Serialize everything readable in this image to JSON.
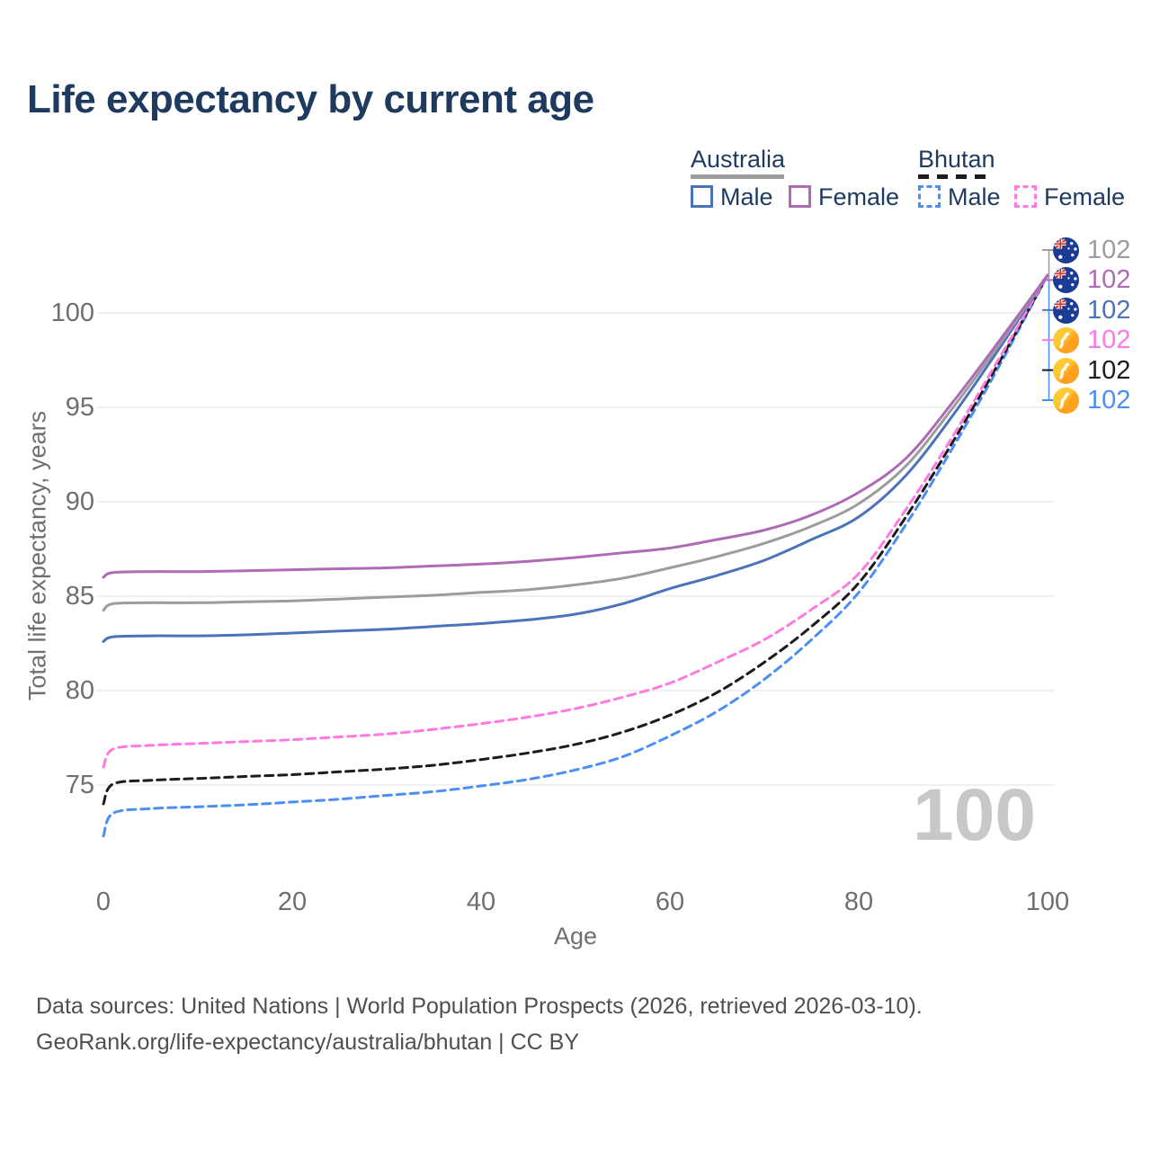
{
  "title": "Life expectancy by current age",
  "watermark_age": "100",
  "colors": {
    "title": "#1e3a5f",
    "axis": "#6f6f6f",
    "grid": "#ececec",
    "watermark": "#c8c8c8",
    "footer": "#4f4f4f",
    "legend_text": "#1e3a5f",
    "connector_top": "#999999",
    "connector_bottom": "#4b8ff5"
  },
  "legend": {
    "groups": [
      {
        "label": "Australia",
        "line_style": "solid",
        "underline_color": "#9c9c9c",
        "items": [
          {
            "label": "Male",
            "color": "#4a73ba",
            "dashed": false
          },
          {
            "label": "Female",
            "color": "#ae6bb5",
            "dashed": false
          }
        ]
      },
      {
        "label": "Bhutan",
        "line_style": "dashed",
        "underline_color": "#1c1c1c",
        "items": [
          {
            "label": "Male",
            "color": "#4b8ff5",
            "dashed": true
          },
          {
            "label": "Female",
            "color": "#ff79e1",
            "dashed": true
          }
        ]
      }
    ]
  },
  "chart_data": {
    "type": "line",
    "title": "Life expectancy by current age",
    "xlabel": "Age",
    "ylabel": "Total life expectancy, years",
    "xlim": [
      0,
      100
    ],
    "ylim": [
      72,
      103
    ],
    "xticks": [
      0,
      20,
      40,
      60,
      80,
      100
    ],
    "yticks": [
      75,
      80,
      85,
      90,
      95,
      100
    ],
    "grid": "horizontal",
    "legend_position": "top-right",
    "ages": [
      0,
      1,
      5,
      10,
      15,
      20,
      25,
      30,
      35,
      40,
      45,
      50,
      55,
      60,
      65,
      70,
      75,
      80,
      85,
      90,
      95,
      100
    ],
    "series": [
      {
        "name": "Australia",
        "country": "Australia",
        "sex": "both",
        "color": "#9c9c9c",
        "dashed": false,
        "flag": "au",
        "end_label": "102",
        "values": [
          84.25,
          84.6,
          84.65,
          84.65,
          84.7,
          84.75,
          84.85,
          84.95,
          85.05,
          85.2,
          85.35,
          85.6,
          85.95,
          86.5,
          87.1,
          87.8,
          88.7,
          89.9,
          91.9,
          95.0,
          98.4,
          102
        ]
      },
      {
        "name": "Australia Female",
        "country": "Australia",
        "sex": "female",
        "color": "#ae6bb5",
        "dashed": false,
        "flag": "au",
        "end_label": "102",
        "values": [
          86.0,
          86.25,
          86.3,
          86.3,
          86.35,
          86.4,
          86.45,
          86.5,
          86.6,
          86.7,
          86.85,
          87.05,
          87.3,
          87.55,
          88.0,
          88.5,
          89.3,
          90.5,
          92.3,
          95.3,
          98.6,
          102
        ]
      },
      {
        "name": "Australia Male",
        "country": "Australia",
        "sex": "male",
        "color": "#4a73ba",
        "dashed": false,
        "flag": "au",
        "end_label": "102",
        "values": [
          82.6,
          82.85,
          82.9,
          82.9,
          82.95,
          83.05,
          83.15,
          83.25,
          83.4,
          83.55,
          83.75,
          84.05,
          84.6,
          85.4,
          86.1,
          86.9,
          88.0,
          89.2,
          91.4,
          94.6,
          98.2,
          102
        ]
      },
      {
        "name": "Bhutan Female",
        "country": "Bhutan",
        "sex": "female",
        "color": "#ff79e1",
        "dashed": true,
        "flag": "bt",
        "end_label": "102",
        "values": [
          75.95,
          76.9,
          77.1,
          77.2,
          77.3,
          77.4,
          77.55,
          77.7,
          77.95,
          78.25,
          78.6,
          79.05,
          79.65,
          80.4,
          81.5,
          82.7,
          84.3,
          86.2,
          89.6,
          93.5,
          97.7,
          102
        ]
      },
      {
        "name": "Bhutan",
        "country": "Bhutan",
        "sex": "both",
        "color": "#1c1c1c",
        "dashed": true,
        "flag": "bt",
        "end_label": "102",
        "values": [
          74.0,
          75.05,
          75.25,
          75.35,
          75.45,
          75.55,
          75.7,
          75.85,
          76.05,
          76.35,
          76.7,
          77.15,
          77.8,
          78.7,
          79.9,
          81.5,
          83.4,
          85.7,
          89.2,
          93.2,
          97.5,
          102
        ]
      },
      {
        "name": "Bhutan Male",
        "country": "Bhutan",
        "sex": "male",
        "color": "#4b8ff5",
        "dashed": true,
        "flag": "bt",
        "end_label": "102",
        "values": [
          72.3,
          73.5,
          73.75,
          73.85,
          73.95,
          74.1,
          74.25,
          74.45,
          74.65,
          74.95,
          75.3,
          75.8,
          76.5,
          77.6,
          78.9,
          80.6,
          82.7,
          85.2,
          88.8,
          92.9,
          97.3,
          102
        ]
      }
    ]
  },
  "footer": {
    "line1": "Data sources: United Nations | World Population Prospects (2026, retrieved 2026-03-10).",
    "line2": "GeoRank.org/life-expectancy/australia/bhutan | CC BY"
  }
}
